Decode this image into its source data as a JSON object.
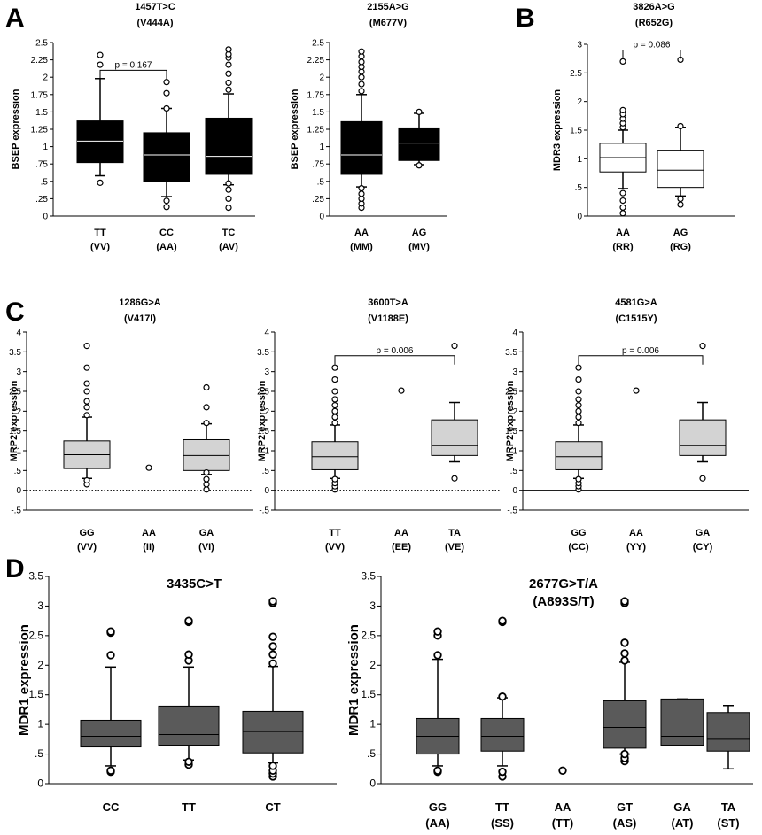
{
  "figure": {
    "panel_letters": [
      "A",
      "B",
      "C",
      "D"
    ]
  },
  "chart_data": [
    {
      "panel": "A",
      "type": "box",
      "title_line1": "1457T>C",
      "title_line2": "(V444A)",
      "ylabel": "BSEP expression",
      "ylim": [
        0,
        2.5
      ],
      "yticks": [
        0,
        0.25,
        0.5,
        0.75,
        1,
        1.25,
        1.5,
        1.75,
        2,
        2.25,
        2.5
      ],
      "ytick_labels": [
        "0",
        ".25",
        ".5",
        ".75",
        "1",
        "1.25",
        "1.5",
        "1.75",
        "2",
        "2.25",
        "2.5"
      ],
      "box_fill": "#000000",
      "median_color": "#ffffff",
      "categories": [
        {
          "line1": "TT",
          "line2": "(VV)",
          "whisker_low": 0.58,
          "q1": 0.77,
          "median": 1.08,
          "q3": 1.37,
          "whisker_high": 1.98,
          "outliers": [
            0.48,
            2.18,
            2.32
          ]
        },
        {
          "line1": "CC",
          "line2": "(AA)",
          "whisker_low": 0.28,
          "q1": 0.5,
          "median": 0.88,
          "q3": 1.2,
          "whisker_high": 1.55,
          "outliers": [
            0.13,
            0.22,
            1.55,
            1.77,
            1.93
          ]
        },
        {
          "line1": "TC",
          "line2": "(AV)",
          "whisker_low": 0.45,
          "q1": 0.6,
          "median": 0.86,
          "q3": 1.41,
          "whisker_high": 1.76,
          "outliers": [
            0.12,
            0.25,
            0.38,
            0.47,
            1.82,
            1.92,
            2.05,
            2.18,
            2.28,
            2.33,
            2.4
          ]
        }
      ],
      "annotations": [
        {
          "text": "p = 0.167",
          "from": 0,
          "to": 1,
          "y": 2.1
        }
      ]
    },
    {
      "panel": "A2",
      "type": "box",
      "title_line1": "2155A>G",
      "title_line2": "(M677V)",
      "ylabel": "BSEP expression",
      "ylim": [
        0,
        2.5
      ],
      "yticks": [
        0,
        0.25,
        0.5,
        0.75,
        1,
        1.25,
        1.5,
        1.75,
        2,
        2.25,
        2.5
      ],
      "ytick_labels": [
        "0",
        ".25",
        ".5",
        ".75",
        "1",
        "1.25",
        "1.5",
        "1.75",
        "2",
        "2.25",
        "2.5"
      ],
      "box_fill": "#000000",
      "median_color": "#ffffff",
      "categories": [
        {
          "line1": "AA",
          "line2": "(MM)",
          "whisker_low": 0.42,
          "q1": 0.6,
          "median": 0.88,
          "q3": 1.36,
          "whisker_high": 1.75,
          "outliers": [
            0.12,
            0.18,
            0.25,
            0.32,
            0.4,
            1.8,
            1.9,
            2.0,
            2.08,
            2.15,
            2.22,
            2.3,
            2.37
          ]
        },
        {
          "line1": "AG",
          "line2": "(MV)",
          "whisker_low": 0.74,
          "q1": 0.8,
          "median": 1.05,
          "q3": 1.27,
          "whisker_high": 1.48,
          "outliers": [
            0.73,
            1.5
          ]
        }
      ],
      "annotations": []
    },
    {
      "panel": "B",
      "type": "box",
      "title_line1": "3826A>G",
      "title_line2": "(R652G)",
      "ylabel": "MDR3 expression",
      "ylim": [
        0,
        3
      ],
      "yticks": [
        0,
        0.5,
        1,
        1.5,
        2,
        2.5,
        3
      ],
      "ytick_labels": [
        "0",
        ".5",
        "1",
        "1.5",
        "2",
        "2.5",
        "3"
      ],
      "box_fill": "#ffffff",
      "median_color": "#000000",
      "categories": [
        {
          "line1": "AA",
          "line2": "(RR)",
          "whisker_low": 0.48,
          "q1": 0.77,
          "median": 1.02,
          "q3": 1.27,
          "whisker_high": 1.5,
          "outliers": [
            0.05,
            0.15,
            0.27,
            0.4,
            1.55,
            1.62,
            1.7,
            1.78,
            1.85,
            2.7
          ]
        },
        {
          "line1": "AG",
          "line2": "(RG)",
          "whisker_low": 0.35,
          "q1": 0.5,
          "median": 0.8,
          "q3": 1.15,
          "whisker_high": 1.55,
          "outliers": [
            0.2,
            0.3,
            1.57,
            2.73
          ]
        }
      ],
      "annotations": [
        {
          "text": "p = 0.086",
          "from": 0,
          "to": 1,
          "y": 2.9
        }
      ]
    },
    {
      "panel": "C",
      "type": "box",
      "title_line1": "1286G>A",
      "title_line2": "(V417I)",
      "ylabel": "MRP2  expression",
      "ylim": [
        -0.5,
        4
      ],
      "yticks": [
        -0.5,
        0,
        0.5,
        1,
        1.5,
        2,
        2.5,
        3,
        3.5,
        4
      ],
      "ytick_labels": [
        "-.5",
        "0",
        ".5",
        "1",
        "1.5",
        "2",
        "2.5",
        "3",
        "3.5",
        "4"
      ],
      "zero_line": "dotted",
      "box_fill": "#d3d3d3",
      "median_color": "#000000",
      "categories": [
        {
          "line1": "GG",
          "line2": "(VV)",
          "whisker_low": 0.3,
          "q1": 0.55,
          "median": 0.9,
          "q3": 1.25,
          "whisker_high": 1.85,
          "outliers": [
            0.15,
            0.25,
            1.9,
            2.1,
            2.25,
            2.5,
            2.7,
            3.1,
            3.65
          ]
        },
        {
          "line1": "AA",
          "line2": "(II)",
          "outliers": [
            0.57
          ]
        },
        {
          "line1": "GA",
          "line2": "(VI)",
          "whisker_low": 0.4,
          "q1": 0.5,
          "median": 0.88,
          "q3": 1.28,
          "whisker_high": 1.68,
          "outliers": [
            0.02,
            0.15,
            0.28,
            0.45,
            1.7,
            2.1,
            2.6
          ]
        }
      ],
      "annotations": []
    },
    {
      "panel": "C2",
      "type": "box",
      "title_line1": "3600T>A",
      "title_line2": "(V1188E)",
      "ylabel": "MRP2  expression",
      "ylim": [
        -0.5,
        4
      ],
      "yticks": [
        -0.5,
        0,
        0.5,
        1,
        1.5,
        2,
        2.5,
        3,
        3.5,
        4
      ],
      "ytick_labels": [
        "-.5",
        "0",
        ".5",
        "1",
        "1.5",
        "2",
        "2.5",
        "3",
        "3.5",
        "4"
      ],
      "zero_line": "dotted",
      "box_fill": "#d3d3d3",
      "median_color": "#000000",
      "categories": [
        {
          "line1": "TT",
          "line2": "(VV)",
          "whisker_low": 0.3,
          "q1": 0.52,
          "median": 0.85,
          "q3": 1.23,
          "whisker_high": 1.65,
          "outliers": [
            0.02,
            0.1,
            0.18,
            0.28,
            1.7,
            1.85,
            2.0,
            2.15,
            2.3,
            2.5,
            2.8,
            3.1
          ]
        },
        {
          "line1": "AA",
          "line2": "(EE)",
          "outliers": [
            2.52
          ]
        },
        {
          "line1": "TA",
          "line2": "(VE)",
          "whisker_low": 0.72,
          "q1": 0.88,
          "median": 1.13,
          "q3": 1.78,
          "whisker_high": 2.22,
          "outliers": [
            0.3,
            3.65
          ]
        }
      ],
      "annotations": [
        {
          "text": "p = 0.006",
          "from": 0,
          "to": 2,
          "y": 3.4
        }
      ]
    },
    {
      "panel": "C3",
      "type": "box",
      "title_line1": "4581G>A",
      "title_line2": "(C1515Y)",
      "ylabel": "MRP2  expression",
      "ylim": [
        -0.5,
        4
      ],
      "yticks": [
        -0.5,
        0,
        0.5,
        1,
        1.5,
        2,
        2.5,
        3,
        3.5,
        4
      ],
      "ytick_labels": [
        "-.5",
        "0",
        ".5",
        "1",
        "1.5",
        "2",
        "2.5",
        "3",
        "3.5",
        "4"
      ],
      "zero_line": "solid",
      "box_fill": "#d3d3d3",
      "median_color": "#000000",
      "categories": [
        {
          "line1": "GG",
          "line2": "(CC)",
          "whisker_low": 0.3,
          "q1": 0.52,
          "median": 0.85,
          "q3": 1.23,
          "whisker_high": 1.65,
          "outliers": [
            0.02,
            0.1,
            0.18,
            0.28,
            1.7,
            1.85,
            2.0,
            2.15,
            2.3,
            2.5,
            2.8,
            3.1
          ]
        },
        {
          "line1": "AA",
          "line2": "(YY)",
          "outliers": [
            2.52
          ]
        },
        {
          "line1": "GA",
          "line2": "(CY)",
          "whisker_low": 0.72,
          "q1": 0.88,
          "median": 1.13,
          "q3": 1.78,
          "whisker_high": 2.22,
          "outliers": [
            0.3,
            3.65
          ]
        }
      ],
      "annotations": [
        {
          "text": "p = 0.006",
          "from": 0,
          "to": 2,
          "y": 3.4
        }
      ]
    },
    {
      "panel": "D",
      "type": "box",
      "title_line1": "3435C>T",
      "title_line2": "",
      "ylabel": "MDR1  expression",
      "ylim": [
        0,
        3.5
      ],
      "yticks": [
        0,
        0.5,
        1,
        1.5,
        2,
        2.5,
        3,
        3.5
      ],
      "ytick_labels": [
        "0",
        ".5",
        "1",
        "1.5",
        "2",
        "2.5",
        "3",
        "3.5"
      ],
      "box_fill": "#5a5a5a",
      "median_color": "#000000",
      "categories": [
        {
          "line1": "CC",
          "line2": "",
          "whisker_low": 0.3,
          "q1": 0.62,
          "median": 0.8,
          "q3": 1.07,
          "whisker_high": 1.97,
          "outliers": [
            0.2,
            0.22,
            2.17,
            2.55,
            2.57
          ]
        },
        {
          "line1": "TT",
          "line2": "",
          "whisker_low": 0.4,
          "q1": 0.65,
          "median": 0.83,
          "q3": 1.31,
          "whisker_high": 1.97,
          "outliers": [
            0.32,
            0.37,
            2.08,
            2.18,
            2.73,
            2.75
          ]
        },
        {
          "line1": "CT",
          "line2": "",
          "whisker_low": 0.35,
          "q1": 0.52,
          "median": 0.88,
          "q3": 1.22,
          "whisker_high": 1.98,
          "outliers": [
            0.12,
            0.17,
            0.22,
            0.3,
            2.03,
            2.18,
            2.32,
            2.48,
            3.05,
            3.08
          ]
        }
      ],
      "annotations": []
    },
    {
      "panel": "D2",
      "type": "box",
      "title_line1": "2677G>T/A",
      "title_line2": "(A893S/T)",
      "ylabel": "MDR1  expression",
      "ylim": [
        0,
        3.5
      ],
      "yticks": [
        0,
        0.5,
        1,
        1.5,
        2,
        2.5,
        3,
        3.5
      ],
      "ytick_labels": [
        "0",
        ".5",
        "1",
        "1.5",
        "2",
        "2.5",
        "3",
        "3.5"
      ],
      "box_fill": "#5a5a5a",
      "median_color": "#000000",
      "categories": [
        {
          "line1": "GG",
          "line2": "(AA)",
          "whisker_low": 0.3,
          "q1": 0.5,
          "median": 0.8,
          "q3": 1.1,
          "whisker_high": 2.1,
          "outliers": [
            0.2,
            0.22,
            2.17,
            2.5,
            2.57
          ]
        },
        {
          "line1": "TT",
          "line2": "(SS)",
          "whisker_low": 0.3,
          "q1": 0.55,
          "median": 0.8,
          "q3": 1.1,
          "whisker_high": 1.45,
          "outliers": [
            0.12,
            0.2,
            1.47,
            2.73,
            2.75
          ]
        },
        {
          "line1": "AA",
          "line2": "(TT)",
          "outliers": [
            0.22
          ]
        },
        {
          "line1": "GT",
          "line2": "(AS)",
          "whisker_low": 0.5,
          "q1": 0.6,
          "median": 0.95,
          "q3": 1.4,
          "whisker_high": 2.05,
          "outliers": [
            0.38,
            0.43,
            0.5,
            2.08,
            2.2,
            2.38,
            3.05,
            3.08
          ]
        },
        {
          "line1": "GA",
          "line2": "(AT)",
          "whisker_low": 0.65,
          "q1": 0.65,
          "median": 0.8,
          "q3": 1.43,
          "whisker_high": 1.43,
          "outliers": []
        },
        {
          "line1": "TA",
          "line2": "(ST)",
          "whisker_low": 0.25,
          "q1": 0.55,
          "median": 0.75,
          "q3": 1.2,
          "whisker_high": 1.32,
          "outliers": []
        }
      ],
      "annotations": []
    }
  ]
}
